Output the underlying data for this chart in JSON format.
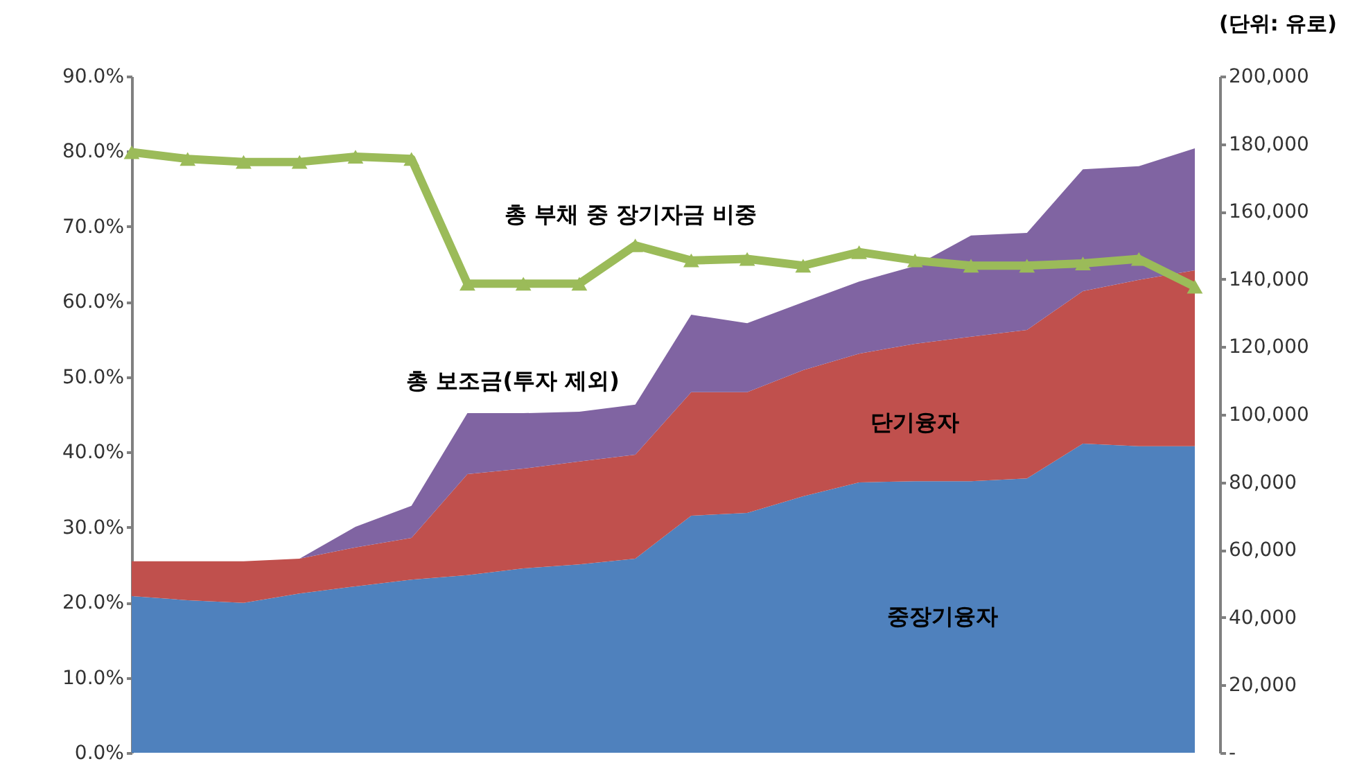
{
  "chart_data": {
    "type": "area",
    "stacked": true,
    "categories": [
      null,
      null,
      null,
      null,
      null,
      null,
      null,
      null,
      null,
      null,
      null,
      null,
      null,
      null,
      null,
      null,
      null,
      null,
      null,
      null
    ],
    "series": [
      {
        "name": "중장기융자",
        "color": "#4f81bd",
        "axis": "y2",
        "values": [
          46300,
          45100,
          44300,
          47100,
          49200,
          51200,
          52500,
          54500,
          55700,
          57400,
          70100,
          70900,
          75800,
          79900,
          80300,
          80300,
          81100,
          91400,
          90600,
          90600
        ]
      },
      {
        "name": "단기융자",
        "color": "#c0504d",
        "axis": "y2",
        "values": [
          10300,
          11500,
          12300,
          10300,
          11500,
          12300,
          29900,
          29500,
          30400,
          30700,
          36500,
          35700,
          37300,
          38100,
          40600,
          42700,
          43900,
          45100,
          49200,
          52000
        ]
      },
      {
        "name": "총 보조금(투자 제외)",
        "color": "#8064a2",
        "axis": "y2",
        "values": [
          0,
          0,
          0,
          0,
          6100,
          9500,
          18000,
          16400,
          14700,
          14800,
          22900,
          20400,
          20100,
          21300,
          23000,
          29900,
          28700,
          36000,
          33600,
          36100
        ]
      },
      {
        "name": "총 부채 중 장기자금 비중",
        "type": "line",
        "color": "#9bbb59",
        "marker": "triangle",
        "line_style": "solid",
        "values": [
          79.9,
          79.0,
          78.6,
          78.6,
          79.3,
          79.0,
          62.4,
          62.4,
          62.4,
          67.5,
          65.5,
          65.7,
          64.8,
          66.6,
          65.5,
          64.8,
          64.8,
          65.1,
          65.7,
          62.0
        ]
      }
    ],
    "ylim": [
      0,
      90
    ],
    "yticks": [
      {
        "value": 0,
        "label": "0.0%"
      },
      {
        "value": 10,
        "label": "10.0%"
      },
      {
        "value": 20,
        "label": "20.0%"
      },
      {
        "value": 30,
        "label": "30.0%"
      },
      {
        "value": 40,
        "label": "40.0%"
      },
      {
        "value": 50,
        "label": "50.0%"
      },
      {
        "value": 60,
        "label": "60.0%"
      },
      {
        "value": 70,
        "label": "70.0%"
      },
      {
        "value": 80,
        "label": "80.0%"
      },
      {
        "value": 90,
        "label": "90.0%"
      }
    ],
    "y2lim": [
      0,
      200000
    ],
    "y2ticks": [
      {
        "value": 0,
        "label": "-"
      },
      {
        "value": 20000,
        "label": "20,000"
      },
      {
        "value": 40000,
        "label": "40,000"
      },
      {
        "value": 60000,
        "label": "60,000"
      },
      {
        "value": 80000,
        "label": "80,000"
      },
      {
        "value": 100000,
        "label": "100,000"
      },
      {
        "value": 120000,
        "label": "120,000"
      },
      {
        "value": 140000,
        "label": "140,000"
      },
      {
        "value": 160000,
        "label": "160,000"
      },
      {
        "value": 180000,
        "label": "180,000"
      },
      {
        "value": 200000,
        "label": "200,000"
      }
    ],
    "annotations": [
      "(단위: 유로)"
    ],
    "grid": false
  }
}
